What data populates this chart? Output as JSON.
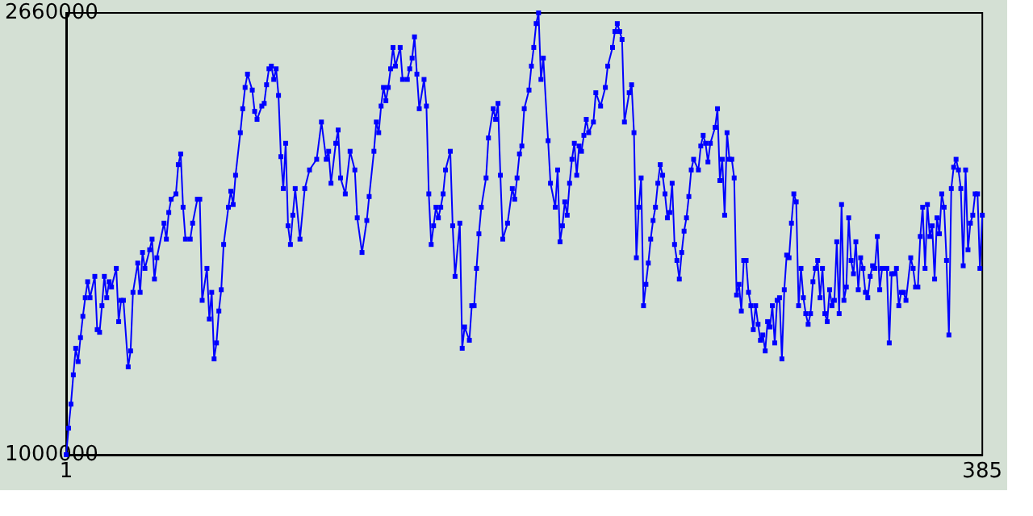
{
  "chart_data": {
    "type": "line",
    "x": [
      1,
      2,
      3,
      4,
      5,
      6,
      7,
      8,
      9,
      10,
      11,
      13,
      14,
      15,
      16,
      17,
      18,
      19,
      20,
      22,
      23,
      24,
      25,
      27,
      28,
      29,
      31,
      32,
      33,
      34,
      36,
      37,
      38,
      39,
      42,
      43,
      44,
      45,
      47,
      48,
      49,
      50,
      51,
      53,
      54,
      56,
      57,
      58,
      60,
      61,
      62,
      63,
      64,
      65,
      66,
      67,
      69,
      70,
      71,
      72,
      74,
      75,
      76,
      77,
      79,
      80,
      81,
      83,
      84,
      85,
      86,
      87,
      88,
      89,
      90,
      91,
      92,
      93,
      94,
      95,
      96,
      97,
      99,
      101,
      103,
      106,
      108,
      110,
      111,
      112,
      114,
      115,
      116,
      118,
      120,
      122,
      123,
      125,
      127,
      128,
      130,
      131,
      132,
      133,
      134,
      135,
      136,
      137,
      138,
      139,
      141,
      142,
      144,
      145,
      146,
      147,
      148,
      149,
      151,
      152,
      153,
      154,
      155,
      156,
      157,
      158,
      159,
      160,
      162,
      163,
      164,
      166,
      167,
      168,
      170,
      171,
      172,
      173,
      174,
      175,
      177,
      178,
      180,
      181,
      182,
      183,
      184,
      186,
      188,
      189,
      190,
      191,
      192,
      193,
      195,
      196,
      197,
      198,
      199,
      200,
      201,
      203,
      204,
      206,
      207,
      208,
      209,
      210,
      211,
      212,
      213,
      214,
      215,
      216,
      217,
      218,
      219,
      220,
      222,
      223,
      225,
      227,
      228,
      230,
      231,
      232,
      233,
      234,
      235,
      237,
      238,
      239,
      240,
      241,
      242,
      243,
      244,
      245,
      246,
      247,
      248,
      249,
      250,
      251,
      252,
      253,
      254,
      255,
      256,
      257,
      258,
      259,
      260,
      261,
      262,
      263,
      264,
      266,
      267,
      268,
      269,
      270,
      271,
      273,
      274,
      275,
      276,
      277,
      278,
      279,
      280,
      281,
      282,
      283,
      284,
      285,
      286,
      287,
      288,
      289,
      290,
      291,
      292,
      293,
      294,
      295,
      296,
      297,
      298,
      299,
      300,
      301,
      302,
      303,
      304,
      305,
      306,
      307,
      308,
      309,
      310,
      311,
      312,
      313,
      314,
      315,
      316,
      317,
      318,
      319,
      320,
      321,
      322,
      323,
      324,
      325,
      326,
      327,
      328,
      329,
      330,
      331,
      332,
      333,
      334,
      335,
      336,
      337,
      338,
      339,
      340,
      341,
      342,
      343,
      345,
      346,
      347,
      348,
      349,
      350,
      351,
      352,
      353,
      355,
      356,
      357,
      358,
      359,
      360,
      361,
      362,
      363,
      364,
      365,
      366,
      367,
      368,
      369,
      370,
      371,
      372,
      373,
      374,
      375,
      376,
      377,
      378,
      379,
      380,
      381,
      382,
      383,
      384,
      385
    ],
    "series": [
      {
        "color": "#0000ff",
        "values": [
          1000000,
          1100000,
          1190000,
          1300000,
          1400000,
          1350000,
          1440000,
          1520000,
          1590000,
          1650000,
          1590000,
          1670000,
          1470000,
          1460000,
          1560000,
          1670000,
          1590000,
          1650000,
          1630000,
          1700000,
          1500000,
          1580000,
          1580000,
          1330000,
          1390000,
          1610000,
          1720000,
          1610000,
          1760000,
          1700000,
          1770000,
          1810000,
          1660000,
          1740000,
          1870000,
          1810000,
          1910000,
          1960000,
          1980000,
          2090000,
          2130000,
          1930000,
          1810000,
          1810000,
          1870000,
          1960000,
          1960000,
          1580000,
          1700000,
          1510000,
          1610000,
          1360000,
          1420000,
          1540000,
          1620000,
          1790000,
          1930000,
          1990000,
          1940000,
          2050000,
          2210000,
          2300000,
          2380000,
          2430000,
          2370000,
          2290000,
          2260000,
          2310000,
          2320000,
          2390000,
          2450000,
          2460000,
          2410000,
          2450000,
          2350000,
          2120000,
          2000000,
          2170000,
          1860000,
          1790000,
          1900000,
          2000000,
          1810000,
          2000000,
          2070000,
          2110000,
          2250000,
          2110000,
          2140000,
          2020000,
          2170000,
          2220000,
          2040000,
          1980000,
          2140000,
          2070000,
          1890000,
          1760000,
          1880000,
          1970000,
          2140000,
          2250000,
          2210000,
          2310000,
          2380000,
          2330000,
          2380000,
          2450000,
          2530000,
          2460000,
          2530000,
          2410000,
          2410000,
          2450000,
          2490000,
          2570000,
          2430000,
          2300000,
          2410000,
          2310000,
          1980000,
          1790000,
          1860000,
          1930000,
          1890000,
          1930000,
          1980000,
          2070000,
          2140000,
          1860000,
          1670000,
          1870000,
          1400000,
          1480000,
          1430000,
          1560000,
          1560000,
          1700000,
          1830000,
          1930000,
          2040000,
          2190000,
          2300000,
          2260000,
          2320000,
          2050000,
          1810000,
          1870000,
          2000000,
          1960000,
          2040000,
          2130000,
          2160000,
          2300000,
          2370000,
          2460000,
          2530000,
          2620000,
          2660000,
          2410000,
          2490000,
          2180000,
          2020000,
          1930000,
          2070000,
          1800000,
          1860000,
          1950000,
          1900000,
          2020000,
          2110000,
          2170000,
          2050000,
          2160000,
          2140000,
          2200000,
          2260000,
          2210000,
          2250000,
          2360000,
          2310000,
          2380000,
          2460000,
          2530000,
          2590000,
          2620000,
          2590000,
          2560000,
          2250000,
          2360000,
          2390000,
          2210000,
          1740000,
          1930000,
          2040000,
          1560000,
          1640000,
          1720000,
          1810000,
          1880000,
          1930000,
          2020000,
          2090000,
          2050000,
          1980000,
          1890000,
          1910000,
          2020000,
          1790000,
          1730000,
          1660000,
          1760000,
          1840000,
          1890000,
          1970000,
          2070000,
          2110000,
          2070000,
          2160000,
          2200000,
          2170000,
          2100000,
          2170000,
          2230000,
          2300000,
          2030000,
          2110000,
          1900000,
          2210000,
          2110000,
          2110000,
          2040000,
          1600000,
          1640000,
          1540000,
          1730000,
          1730000,
          1610000,
          1560000,
          1470000,
          1560000,
          1490000,
          1430000,
          1450000,
          1390000,
          1500000,
          1480000,
          1560000,
          1420000,
          1580000,
          1590000,
          1360000,
          1620000,
          1750000,
          1740000,
          1870000,
          1980000,
          1950000,
          1560000,
          1700000,
          1590000,
          1530000,
          1490000,
          1530000,
          1650000,
          1700000,
          1730000,
          1590000,
          1700000,
          1530000,
          1500000,
          1620000,
          1560000,
          1580000,
          1800000,
          1530000,
          1940000,
          1580000,
          1630000,
          1890000,
          1730000,
          1680000,
          1800000,
          1620000,
          1740000,
          1700000,
          1610000,
          1590000,
          1670000,
          1710000,
          1700000,
          1820000,
          1620000,
          1700000,
          1700000,
          1420000,
          1680000,
          1680000,
          1700000,
          1560000,
          1610000,
          1610000,
          1580000,
          1740000,
          1700000,
          1630000,
          1630000,
          1820000,
          1930000,
          1700000,
          1940000,
          1820000,
          1860000,
          1660000,
          1890000,
          1830000,
          1980000,
          1930000,
          1730000,
          1450000,
          2000000,
          2080000,
          2110000,
          2070000,
          2000000,
          1710000,
          2070000,
          1770000,
          1870000,
          1900000,
          1980000,
          1980000,
          1700000,
          1900000
        ]
      }
    ],
    "xlim": [
      1,
      385
    ],
    "xticks": [
      1,
      385
    ],
    "ylim": [
      1000000,
      2660000
    ],
    "yticks": [
      1000000,
      2660000
    ],
    "marker": "square",
    "line_style": "solid",
    "grid": false
  }
}
